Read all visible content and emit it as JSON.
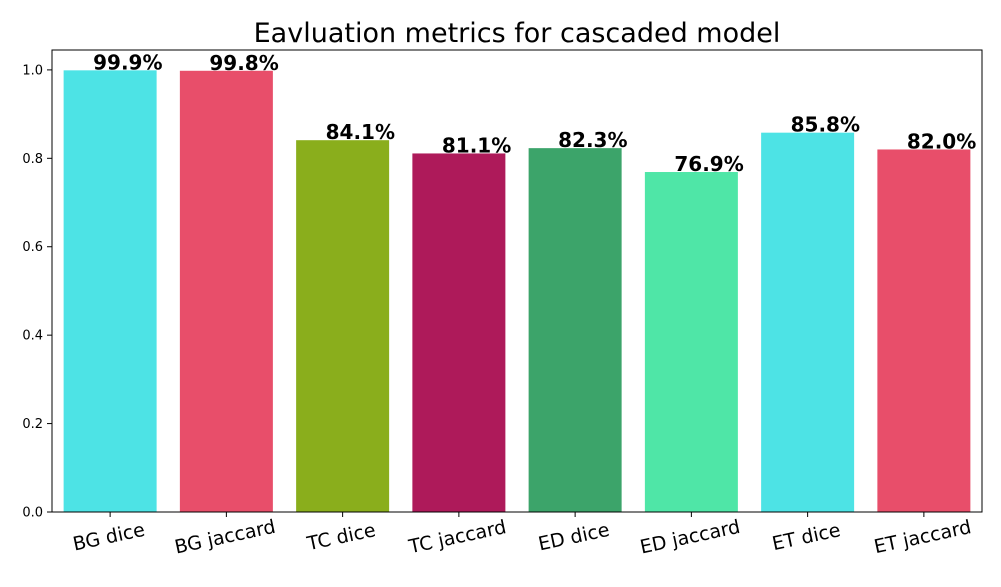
{
  "chart_data": {
    "type": "bar",
    "title": "Eavluation metrics for cascaded model",
    "xlabel": "",
    "ylabel": "",
    "ylim": [
      0,
      1.045
    ],
    "yticks": [
      "0.0",
      "0.2",
      "0.4",
      "0.6",
      "0.8",
      "1.0"
    ],
    "ytick_values": [
      0.0,
      0.2,
      0.4,
      0.6,
      0.8,
      1.0
    ],
    "grid": false,
    "categories": [
      "BG dice",
      "BG jaccard",
      "TC dice",
      "TC jaccard",
      "ED dice",
      "ED jaccard",
      "ET dice",
      "ET jaccard"
    ],
    "values": [
      0.999,
      0.998,
      0.841,
      0.811,
      0.823,
      0.769,
      0.858,
      0.82
    ],
    "value_labels": [
      "99.9%",
      "99.8%",
      "84.1%",
      "81.1%",
      "82.3%",
      "76.9%",
      "85.8%",
      "82.0%"
    ],
    "colors": [
      "#4de3e5",
      "#e84e6a",
      "#8aae1c",
      "#ae1a5a",
      "#3ca46a",
      "#4fe6a7",
      "#4de3e5",
      "#e84e6a"
    ]
  }
}
